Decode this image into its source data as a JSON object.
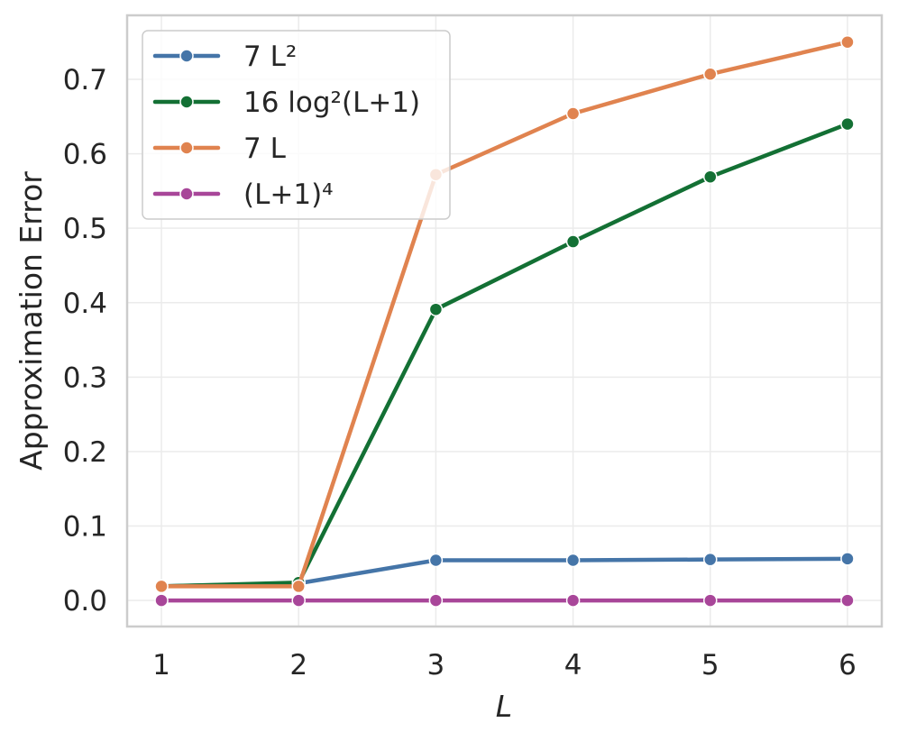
{
  "chart_data": {
    "type": "line",
    "xlabel": "L",
    "ylabel": "Approximation Error",
    "x": [
      1,
      2,
      3,
      4,
      5,
      6
    ],
    "xlim": [
      0.75,
      6.25
    ],
    "ylim": [
      -0.035,
      0.786
    ],
    "xticks": [
      1,
      2,
      3,
      4,
      5,
      6
    ],
    "yticks": [
      0.0,
      0.1,
      0.2,
      0.3,
      0.4,
      0.5,
      0.6,
      0.7
    ],
    "ytick_labels": [
      "0.0",
      "0.1",
      "0.2",
      "0.3",
      "0.4",
      "0.5",
      "0.6",
      "0.7"
    ],
    "grid": true,
    "legend_position": "top-left",
    "series": [
      {
        "name": "7 L²",
        "color": "#4575a8",
        "values": [
          0.019,
          0.023,
          0.054,
          0.054,
          0.055,
          0.056
        ]
      },
      {
        "name": "16 log²(L+1)",
        "color": "#137034",
        "values": [
          0.019,
          0.024,
          0.391,
          0.482,
          0.569,
          0.64
        ]
      },
      {
        "name": "7 L",
        "color": "#e0834f",
        "values": [
          0.019,
          0.019,
          0.572,
          0.654,
          0.707,
          0.75
        ]
      },
      {
        "name": "(L+1)⁴",
        "color": "#a84699",
        "values": [
          0.0,
          0.0,
          0.0,
          0.0,
          0.0,
          0.0
        ]
      }
    ]
  }
}
